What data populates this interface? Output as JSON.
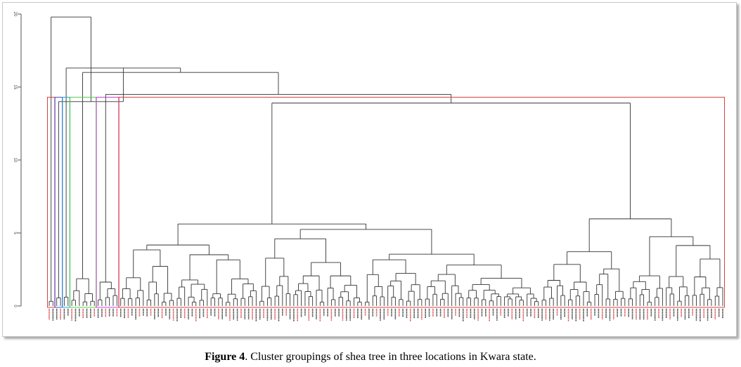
{
  "chart_data": {
    "type": "dendrogram",
    "y_axis": {
      "ticks": [
        "0",
        "5",
        "10",
        "15",
        "20"
      ],
      "ylim": [
        0,
        20
      ]
    },
    "merge_heights": [
      19.8,
      16.3,
      16.0,
      14.5,
      14.0,
      13.9,
      12.5,
      10.3,
      9.8,
      9.0,
      8.4,
      8.2,
      7.8,
      7.3,
      6.9,
      6.7,
      6.3,
      6.1,
      6.0,
      5.9,
      5.8,
      5.5,
      5.4,
      5.3,
      5.2,
      5.0,
      4.9,
      4.8,
      4.7,
      4.5
    ],
    "cluster_boxes": [
      {
        "color": "#d94040",
        "group": 1
      },
      {
        "color": "#4a4ad9",
        "group": 2
      },
      {
        "color": "#2aa0d0",
        "group": 3
      },
      {
        "color": "#55d04a",
        "group": 4
      },
      {
        "color": "#c040d0",
        "group": 5
      },
      {
        "color": "#d94040",
        "group": 6
      }
    ],
    "leaf_count": 180,
    "leaf_label_colors": [
      "#d94040",
      "#333333"
    ]
  },
  "caption": {
    "label": "Figure 4",
    "text": ". Cluster groupings of shea tree in three locations in Kwara state."
  }
}
